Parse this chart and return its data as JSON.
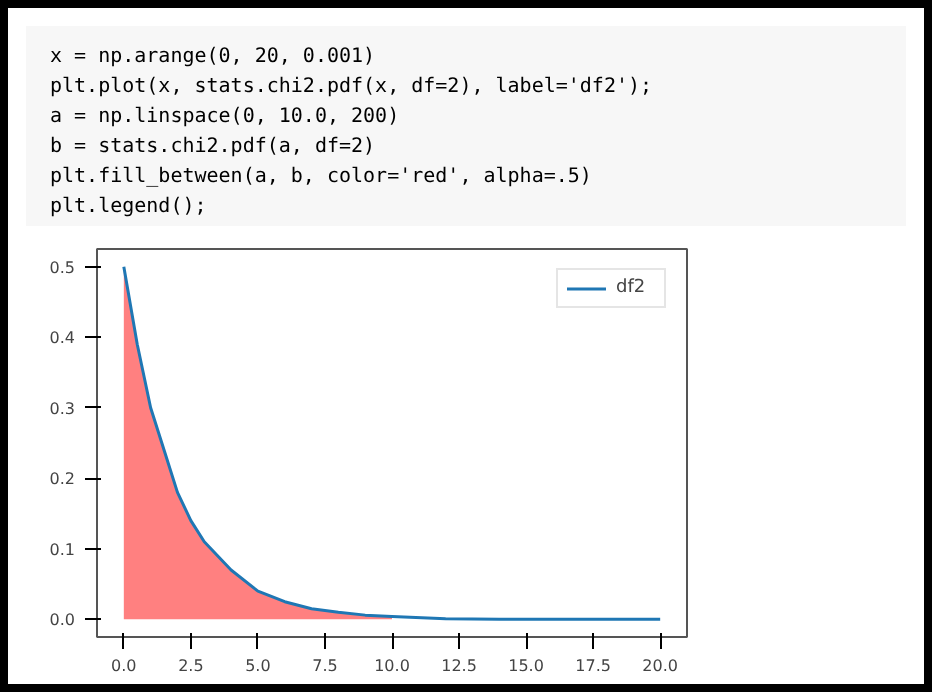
{
  "chart_data": {
    "type": "line",
    "annotations": [
      "x = np.arange(0, 20, 0.001)",
      "plt.plot(x, stats.chi2.pdf(x, df=2), label='df2');",
      "a = np.linspace(0, 10.0, 200)",
      "b = stats.chi2.pdf(a, df=2)",
      "plt.fill_between(a, b, color='red', alpha=.5)",
      "plt.legend();"
    ],
    "series": [
      {
        "type": "area",
        "color": "#ff8080",
        "x": [
          0,
          0.5,
          1,
          1.5,
          2,
          2.5,
          3,
          4,
          5,
          6,
          7,
          8,
          9,
          10
        ],
        "values": [
          0.5,
          0.39,
          0.3,
          0.24,
          0.18,
          0.14,
          0.11,
          0.07,
          0.04,
          0.025,
          0.015,
          0.01,
          0.006,
          0.004
        ]
      },
      {
        "name": "df2",
        "color": "#1f77b4",
        "x": [
          0,
          0.5,
          1,
          1.5,
          2,
          2.5,
          3,
          4,
          5,
          6,
          7,
          8,
          9,
          10,
          12,
          14,
          16,
          18,
          20
        ],
        "values": [
          0.5,
          0.39,
          0.3,
          0.24,
          0.18,
          0.14,
          0.11,
          0.07,
          0.04,
          0.025,
          0.015,
          0.01,
          0.006,
          0.004,
          0.001,
          0.0,
          0.0,
          0.0,
          0.0
        ]
      }
    ],
    "xlim": [
      -1,
      21
    ],
    "ylim": [
      -0.025,
      0.525
    ],
    "xticks": [
      {
        "value": 0,
        "label": "0.0"
      },
      {
        "value": 2.5,
        "label": "2.5"
      },
      {
        "value": 5,
        "label": "5.0"
      },
      {
        "value": 7.5,
        "label": "7.5"
      },
      {
        "value": 10,
        "label": "10.0"
      },
      {
        "value": 12.5,
        "label": "12.5"
      },
      {
        "value": 15,
        "label": "15.0"
      },
      {
        "value": 17.5,
        "label": "17.5"
      },
      {
        "value": 20,
        "label": "20.0"
      }
    ],
    "yticks": [
      {
        "value": 0,
        "label": "0.0"
      },
      {
        "value": 0.1,
        "label": "0.1"
      },
      {
        "value": 0.2,
        "label": "0.2"
      },
      {
        "value": 0.3,
        "label": "0.3"
      },
      {
        "value": 0.4,
        "label": "0.4"
      },
      {
        "value": 0.5,
        "label": "0.5"
      }
    ],
    "legend": "top right",
    "grid": false
  }
}
